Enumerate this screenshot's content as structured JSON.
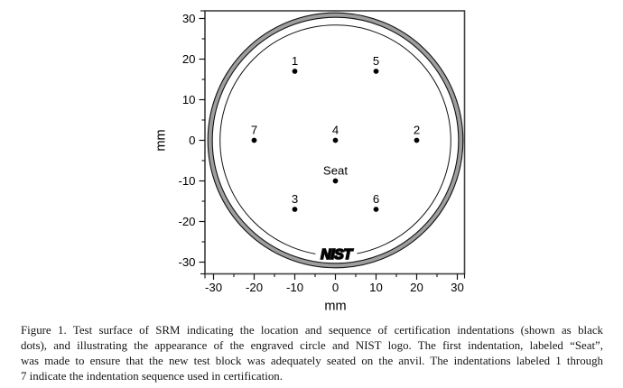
{
  "figure": {
    "caption_lines": [
      "Figure 1.  Test surface of SRM indicating the location and sequence of certification indentations (shown as black",
      "dots), and illustrating the appearance of the engraved circle and NIST logo.  The first indentation, labeled “Seat”,",
      "was made to ensure that the new test block was adequately seated on the anvil.  The indentations labeled 1 through",
      "7 indicate the indentation sequence used in certification."
    ]
  },
  "chart_data": {
    "type": "scatter",
    "title": "",
    "xlabel": "mm",
    "ylabel": "mm",
    "xlim": [
      -32,
      32
    ],
    "ylim": [
      -32.5,
      31.5
    ],
    "grid": false,
    "x_major_ticks": [
      -30,
      -20,
      -10,
      0,
      10,
      20,
      30
    ],
    "x_minor_ticks": [
      -25,
      -15,
      -5,
      5,
      15,
      25
    ],
    "y_major_ticks": [
      30,
      20,
      10,
      0,
      -10,
      -20,
      -30
    ],
    "y_minor_ticks": [
      25,
      15,
      5,
      -5,
      -15,
      -25
    ],
    "points": [
      {
        "label": "1",
        "x": -10,
        "y": 17
      },
      {
        "label": "5",
        "x": 10,
        "y": 17
      },
      {
        "label": "7",
        "x": -20,
        "y": 0
      },
      {
        "label": "4",
        "x": 0,
        "y": 0
      },
      {
        "label": "2",
        "x": 20,
        "y": 0
      },
      {
        "label": "Seat",
        "x": 0,
        "y": -10
      },
      {
        "label": "3",
        "x": -10,
        "y": -17
      },
      {
        "label": "6",
        "x": 10,
        "y": -17
      }
    ],
    "circles": {
      "block_outer_radius_mm": 31.4,
      "block_ring_inner_radius_mm": 30.3,
      "engraved_circle_radius_mm": 28.4
    },
    "logo_text": "NIST",
    "logo_center_mm": {
      "x": 0.2,
      "y": -28.0
    },
    "colors": {
      "ring_fill": "#9e9e9e",
      "line": "#111111",
      "box": "#3f3f3f",
      "dot": "#000000"
    }
  }
}
